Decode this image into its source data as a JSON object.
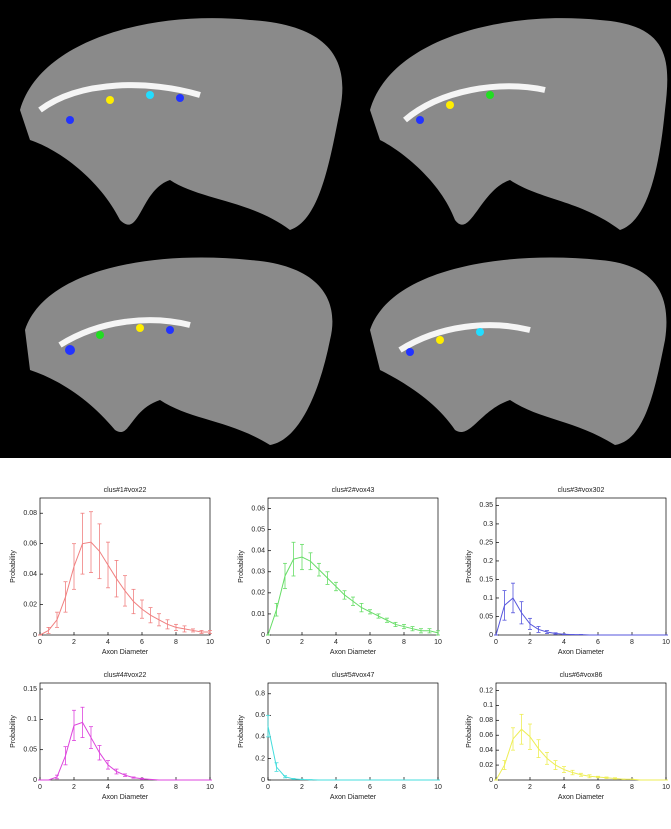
{
  "chart_data": [
    {
      "type": "line",
      "title": "clus#1#vox22",
      "xlabel": "Axon Diameter",
      "ylabel": "Probability",
      "color": "#f08080",
      "x": [
        0,
        0.5,
        1,
        1.5,
        2,
        2.5,
        3,
        3.5,
        4,
        4.5,
        5,
        5.5,
        6,
        6.5,
        7,
        7.5,
        8,
        8.5,
        9,
        9.5,
        10
      ],
      "values": [
        0,
        0.003,
        0.01,
        0.025,
        0.045,
        0.06,
        0.061,
        0.055,
        0.046,
        0.037,
        0.029,
        0.022,
        0.017,
        0.013,
        0.01,
        0.007,
        0.005,
        0.004,
        0.003,
        0.002,
        0.002
      ],
      "errors": [
        0,
        0.002,
        0.005,
        0.01,
        0.015,
        0.02,
        0.02,
        0.018,
        0.015,
        0.012,
        0.01,
        0.008,
        0.006,
        0.005,
        0.004,
        0.003,
        0.002,
        0.002,
        0.001,
        0.001,
        0.001
      ],
      "xlim": [
        0,
        10
      ],
      "xticks": [
        0,
        2,
        4,
        6,
        8,
        10
      ],
      "ylim": [
        0,
        0.09
      ],
      "yticks": [
        0,
        0.02,
        0.04,
        0.06,
        0.08
      ]
    },
    {
      "type": "line",
      "title": "clus#2#vox43",
      "xlabel": "Axon Diameter",
      "ylabel": "Probability",
      "color": "#66dd66",
      "x": [
        0,
        0.5,
        1,
        1.5,
        2,
        2.5,
        3,
        3.5,
        4,
        4.5,
        5,
        5.5,
        6,
        6.5,
        7,
        7.5,
        8,
        8.5,
        9,
        9.5,
        10
      ],
      "values": [
        0,
        0.012,
        0.028,
        0.036,
        0.037,
        0.035,
        0.031,
        0.027,
        0.023,
        0.019,
        0.016,
        0.013,
        0.011,
        0.009,
        0.007,
        0.005,
        0.004,
        0.003,
        0.002,
        0.002,
        0.001
      ],
      "errors": [
        0,
        0.003,
        0.006,
        0.008,
        0.006,
        0.004,
        0.003,
        0.003,
        0.002,
        0.002,
        0.002,
        0.002,
        0.001,
        0.001,
        0.001,
        0.001,
        0.001,
        0.001,
        0.001,
        0.001,
        0.001
      ],
      "xlim": [
        0,
        10
      ],
      "xticks": [
        0,
        2,
        4,
        6,
        8,
        10
      ],
      "ylim": [
        0,
        0.065
      ],
      "yticks": [
        0,
        0.01,
        0.02,
        0.03,
        0.04,
        0.05,
        0.06
      ]
    },
    {
      "type": "line",
      "title": "clus#3#vox302",
      "xlabel": "Axon Diameter",
      "ylabel": "Probability",
      "color": "#5555dd",
      "x": [
        0,
        0.5,
        1,
        1.5,
        2,
        2.5,
        3,
        3.5,
        4,
        4.5,
        5,
        5.5,
        6,
        6.5,
        7,
        7.5,
        8,
        8.5,
        9,
        9.5,
        10
      ],
      "values": [
        0,
        0.08,
        0.1,
        0.06,
        0.03,
        0.015,
        0.008,
        0.004,
        0.002,
        0.001,
        0.001,
        0,
        0,
        0,
        0,
        0,
        0,
        0,
        0,
        0,
        0
      ],
      "errors": [
        0,
        0.04,
        0.04,
        0.03,
        0.015,
        0.008,
        0.004,
        0.002,
        0.001,
        0,
        0,
        0,
        0,
        0,
        0,
        0,
        0,
        0,
        0,
        0,
        0
      ],
      "xlim": [
        0,
        10
      ],
      "xticks": [
        0,
        2,
        4,
        6,
        8,
        10
      ],
      "ylim": [
        0,
        0.37
      ],
      "yticks": [
        0,
        0.05,
        0.1,
        0.15,
        0.2,
        0.25,
        0.3,
        0.35
      ]
    },
    {
      "type": "line",
      "title": "clus#4#vox22",
      "xlabel": "Axon Diameter",
      "ylabel": "Probability",
      "color": "#dd44dd",
      "x": [
        0,
        0.5,
        1,
        1.5,
        2,
        2.5,
        3,
        3.5,
        4,
        4.5,
        5,
        5.5,
        6,
        6.5,
        7,
        7.5,
        8,
        8.5,
        9,
        9.5,
        10
      ],
      "values": [
        0,
        0,
        0.005,
        0.04,
        0.09,
        0.095,
        0.07,
        0.045,
        0.025,
        0.014,
        0.008,
        0.004,
        0.002,
        0.001,
        0,
        0,
        0,
        0,
        0,
        0,
        0
      ],
      "errors": [
        0,
        0,
        0.003,
        0.015,
        0.025,
        0.025,
        0.018,
        0.012,
        0.007,
        0.004,
        0.002,
        0.001,
        0.001,
        0,
        0,
        0,
        0,
        0,
        0,
        0,
        0
      ],
      "xlim": [
        0,
        10
      ],
      "xticks": [
        0,
        2,
        4,
        6,
        8,
        10
      ],
      "ylim": [
        0,
        0.16
      ],
      "yticks": [
        0,
        0.05,
        0.1,
        0.15
      ]
    },
    {
      "type": "line",
      "title": "clus#5#vox47",
      "xlabel": "Axon Diameter",
      "ylabel": "Probability",
      "color": "#44dddd",
      "x": [
        0,
        0.5,
        1,
        1.5,
        2,
        2.5,
        3,
        3.5,
        4,
        4.5,
        5,
        5.5,
        6,
        6.5,
        7,
        7.5,
        8,
        8.5,
        9,
        9.5,
        10
      ],
      "values": [
        0.5,
        0.12,
        0.03,
        0.01,
        0.005,
        0.002,
        0,
        0,
        0,
        0,
        0,
        0,
        0,
        0,
        0,
        0,
        0,
        0,
        0,
        0,
        0
      ],
      "errors": [
        0.1,
        0.04,
        0.01,
        0.004,
        0.002,
        0.001,
        0,
        0,
        0,
        0,
        0,
        0,
        0,
        0,
        0,
        0,
        0,
        0,
        0,
        0,
        0
      ],
      "xlim": [
        0,
        10
      ],
      "xticks": [
        0,
        2,
        4,
        6,
        8,
        10
      ],
      "ylim": [
        0,
        0.9
      ],
      "yticks": [
        0,
        0.2,
        0.4,
        0.6,
        0.8
      ]
    },
    {
      "type": "line",
      "title": "clus#6#vox86",
      "xlabel": "Axon Diameter",
      "ylabel": "Probability",
      "color": "#eeee55",
      "x": [
        0,
        0.5,
        1,
        1.5,
        2,
        2.5,
        3,
        3.5,
        4,
        4.5,
        5,
        5.5,
        6,
        6.5,
        7,
        7.5,
        8,
        8.5,
        9,
        9.5,
        10
      ],
      "values": [
        0,
        0.02,
        0.055,
        0.068,
        0.058,
        0.042,
        0.029,
        0.02,
        0.014,
        0.01,
        0.007,
        0.005,
        0.004,
        0.003,
        0.002,
        0.001,
        0.001,
        0,
        0,
        0,
        0
      ],
      "errors": [
        0,
        0.006,
        0.015,
        0.02,
        0.017,
        0.012,
        0.008,
        0.006,
        0.004,
        0.003,
        0.002,
        0.002,
        0.001,
        0.001,
        0.001,
        0,
        0,
        0,
        0,
        0,
        0
      ],
      "xlim": [
        0,
        10
      ],
      "xticks": [
        0,
        2,
        4,
        6,
        8,
        10
      ],
      "ylim": [
        0,
        0.13
      ],
      "yticks": [
        0,
        0.02,
        0.04,
        0.06,
        0.08,
        0.1,
        0.12
      ]
    }
  ]
}
